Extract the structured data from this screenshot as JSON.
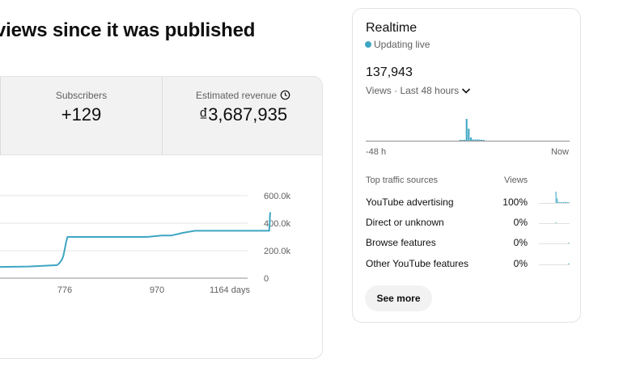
{
  "headline": "views since it was published",
  "metrics": {
    "subscribers": {
      "label": "Subscribers",
      "value": "+129"
    },
    "revenue": {
      "label": "Estimated revenue",
      "value": "₫3,687,935",
      "icon": "clock-icon"
    }
  },
  "chart_data": {
    "type": "line",
    "x_ticks": [
      "776",
      "970",
      "1164 days"
    ],
    "y_ticks": [
      "600.0k",
      "400.0k",
      "200.0k",
      "0"
    ],
    "ylim": [
      0,
      600000
    ],
    "line_color": "#3ea6c2",
    "series": [
      {
        "x": [
          520,
          600,
          700,
          760,
          765,
          770,
          773,
          776,
          779,
          782,
          800,
          850,
          900,
          950,
          980,
          1000,
          1025,
          1050,
          1100,
          1150,
          1200,
          1206,
          1208
        ],
        "values": [
          80000,
          80000,
          85000,
          95000,
          110000,
          135000,
          160000,
          210000,
          265000,
          300000,
          300000,
          300000,
          300000,
          300000,
          310000,
          310000,
          330000,
          345000,
          345000,
          345000,
          345000,
          345000,
          480000
        ]
      }
    ]
  },
  "realtime": {
    "title": "Realtime",
    "live_label": "Updating live",
    "count": "137,943",
    "period_label": "Views · Last 48 hours",
    "start_label": "-48 h",
    "end_label": "Now",
    "color": "#3ea6c2",
    "bars": [
      0,
      0,
      0,
      0,
      0,
      0,
      0,
      0,
      0,
      0,
      0,
      0,
      0,
      0,
      0,
      0,
      0,
      0,
      0,
      0,
      0,
      0,
      0,
      0,
      0,
      0,
      0,
      0,
      0,
      0,
      0,
      0,
      0,
      0,
      0,
      0,
      0,
      0,
      0,
      0,
      0,
      0,
      0,
      0,
      2,
      3,
      4,
      100,
      55,
      15,
      6,
      5,
      6,
      5,
      4,
      3,
      0,
      0,
      0,
      0,
      0,
      0,
      0,
      0,
      0,
      0,
      0,
      0,
      0,
      0,
      0,
      0,
      0,
      0,
      0,
      0,
      0,
      0,
      0,
      0,
      0,
      0,
      0,
      0,
      0,
      0,
      0,
      0,
      0,
      0,
      0,
      0,
      0,
      0,
      0,
      0
    ],
    "traffic_header": {
      "source": "Top traffic sources",
      "views": "Views"
    },
    "traffic": [
      {
        "source": "YouTube advertising",
        "pct": "100%",
        "spark": [
          0,
          0,
          0,
          0,
          0,
          0,
          0,
          0,
          0,
          0,
          0,
          0,
          0,
          100,
          40,
          10,
          5,
          5,
          5,
          5,
          10,
          5,
          5,
          5
        ]
      },
      {
        "source": "Direct or unknown",
        "pct": "0%",
        "spark": [
          0,
          0,
          0,
          0,
          0,
          0,
          0,
          0,
          0,
          0,
          0,
          0,
          0,
          5,
          0,
          0,
          0,
          0,
          0,
          0,
          0,
          0,
          0,
          0
        ]
      },
      {
        "source": "Browse features",
        "pct": "0%",
        "spark": [
          0,
          0,
          0,
          0,
          0,
          0,
          0,
          0,
          0,
          0,
          0,
          0,
          0,
          0,
          0,
          0,
          0,
          0,
          0,
          0,
          0,
          0,
          0,
          5
        ]
      },
      {
        "source": "Other YouTube features",
        "pct": "0%",
        "spark": [
          0,
          0,
          0,
          0,
          0,
          0,
          0,
          0,
          0,
          0,
          0,
          0,
          0,
          0,
          0,
          0,
          0,
          0,
          0,
          0,
          0,
          0,
          0,
          10
        ]
      }
    ],
    "see_more": "See more"
  }
}
